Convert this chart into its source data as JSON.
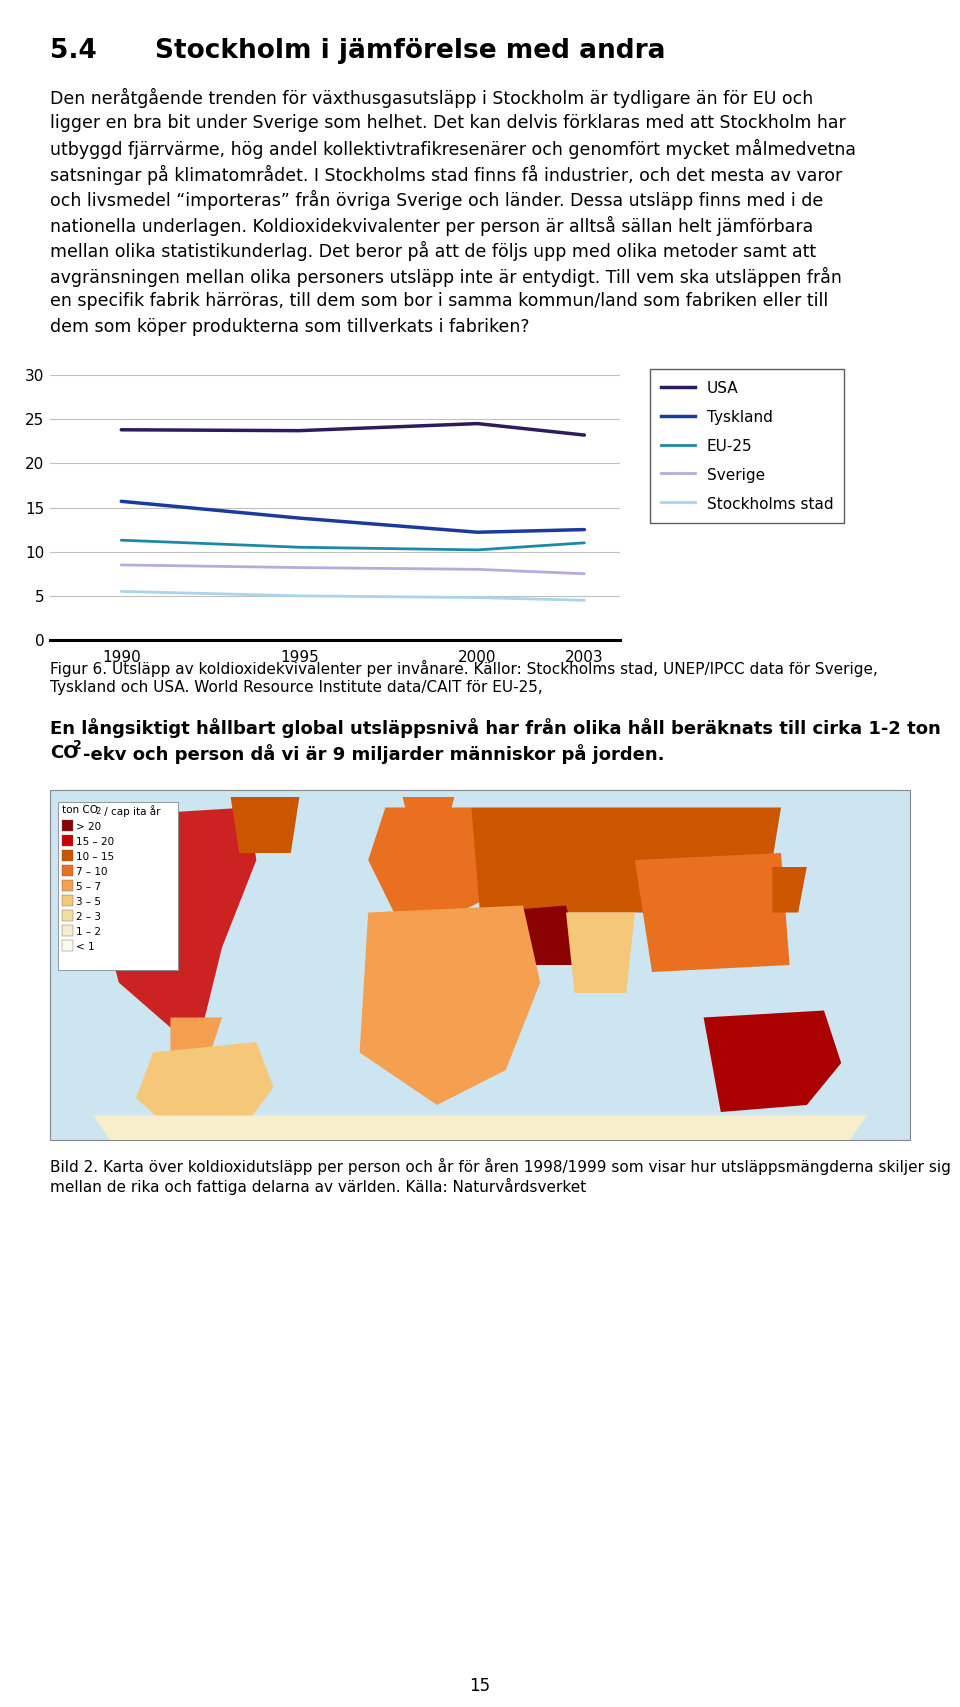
{
  "page_title_num": "5.4",
  "page_title_text": "Stockholm i jämförelse med andra",
  "para1_lines": [
    "Den neråtgående trenden för växthusgasutsläpp i Stockholm är tydligare än för EU och",
    "ligger en bra bit under Sverige som helhet. Det kan delvis förklaras med att Stockholm har",
    "utbyggd fjärrvärme, hög andel kollektivtrafikresenärer och genomfört mycket målmedvetna",
    "satsningar på klimatområdet. I Stockholms stad finns få industrier, och det mesta av varor",
    "och livsmedel “importeras” från övriga Sverige och länder. Dessa utsläpp finns med i de",
    "nationella underlagen. Koldioxidekvivalenter per person är alltså sällan helt jämförbara",
    "mellan olika statistikunderlag. Det beror på att de följs upp med olika metoder samt att",
    "avgränsningen mellan olika personers utsläpp inte är entydigt. Till vem ska utsläppen från",
    "en specifik fabrik härröras, till dem som bor i samma kommun/land som fabriken eller till",
    "dem som köper produkterna som tillverkats i fabriken?"
  ],
  "chart_years": [
    1990,
    1995,
    2000,
    2003
  ],
  "chart_data": {
    "USA": [
      23.8,
      23.7,
      24.5,
      23.2
    ],
    "Tyskland": [
      15.7,
      13.8,
      12.2,
      12.5
    ],
    "EU-25": [
      11.3,
      10.5,
      10.2,
      11.0
    ],
    "Sverige": [
      8.5,
      8.2,
      8.0,
      7.5
    ],
    "Stockholms stad": [
      5.5,
      5.0,
      4.8,
      4.5
    ]
  },
  "line_colors": {
    "USA": "#2d1b5e",
    "Tyskland": "#1a3a9e",
    "EU-25": "#1b8aaa",
    "Sverige": "#b8aadd",
    "Stockholms stad": "#aad4ec"
  },
  "line_widths": {
    "USA": 2.5,
    "Tyskland": 2.5,
    "EU-25": 2.0,
    "Sverige": 2.0,
    "Stockholms stad": 2.0
  },
  "ylim": [
    0,
    30
  ],
  "yticks": [
    0,
    5,
    10,
    15,
    20,
    25,
    30
  ],
  "figur6_line1": "Figur 6. Utsläpp av koldioxidekvivalenter per invånare. Källor: Stockholms stad, UNEP/IPCC data för Sverige,",
  "figur6_line2": "Tyskland och USA. World Resource Institute data/CAIT för EU-25,",
  "para2_line1": "En långsiktigt hållbart global utsläppsnivå har från olika håll beräknats till cirka 1-2 ton",
  "para2_line2a": "CO",
  "para2_line2b": "2",
  "para2_line2c": "-ekv och person då vi är 9 miljarder människor på jorden.",
  "map_legend_title": "ton CO",
  "map_legend_title2": "2",
  "map_legend_title3": " / cap ita år",
  "map_legend_entries": [
    [
      "> 20",
      "#8b0000"
    ],
    [
      "15 – 20",
      "#cc0000"
    ],
    [
      "10 – 15",
      "#cc5500"
    ],
    [
      "7 – 10",
      "#e87020"
    ],
    [
      "5 – 7",
      "#f4a050"
    ],
    [
      "3 – 5",
      "#f4c878"
    ],
    [
      "2 – 3",
      "#f5dca0"
    ],
    [
      "1 – 2",
      "#f8eecc"
    ],
    [
      "< 1",
      "#fdfaec"
    ]
  ],
  "bild2_line1": "Bild 2. Karta över koldioxidutsläpp per person och år för åren 1998/1999 som visar hur utsläppsmängderna skiljer sig",
  "bild2_line2": "mellan de rika och fattiga delarna av världen. Källa: Naturvårdsverket",
  "page_number": "15",
  "bg_color": "#ffffff",
  "text_color": "#000000",
  "grid_color": "#c0c0c0",
  "ocean_color": "#cce5f0",
  "map_border_color": "#888888"
}
